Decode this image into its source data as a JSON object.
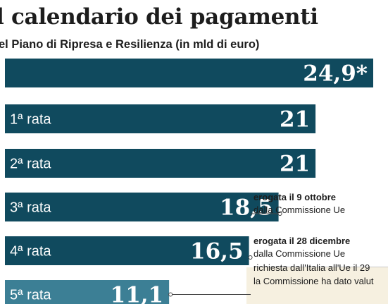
{
  "header": {
    "title": "l calendario dei pagamenti",
    "subtitle": "el Piano di Ripresa e Resilienza (in mld di euro)"
  },
  "colors": {
    "bar": "#104a5e",
    "bar_requested": "#3c7f95",
    "connector": "#444444"
  },
  "chart_data": {
    "type": "bar",
    "orientation": "horizontal",
    "title": "l calendario dei pagamenti",
    "subtitle": "el Piano di Ripresa e Resilienza (in mld di euro)",
    "xlim": [
      0,
      25.9
    ],
    "categories": [
      "",
      "1ª rata",
      "2ª rata",
      "3ª rata",
      "4ª rata",
      "5ª rata"
    ],
    "values": [
      24.9,
      21,
      21,
      18.5,
      16.5,
      11.1
    ],
    "value_labels": [
      "24,9*",
      "21",
      "21",
      "18,5",
      "16,5",
      "11,1"
    ],
    "status": [
      "paid",
      "paid",
      "paid",
      "paid",
      "paid",
      "requested"
    ],
    "annotations": [
      {
        "bar": 3,
        "bold": "erogata il 9 ottobre",
        "normal": "dalla Commissione Ue"
      },
      {
        "bar": 4,
        "bold": "erogata il 28 dicembre",
        "normal": "dalla Commissione Ue"
      },
      {
        "bar": 5,
        "bold": "",
        "normal": "richiesta dall'Italia all'Ue il 29",
        "normal2": "la Commissione ha dato valut"
      }
    ],
    "grid": false,
    "legend": "none"
  }
}
